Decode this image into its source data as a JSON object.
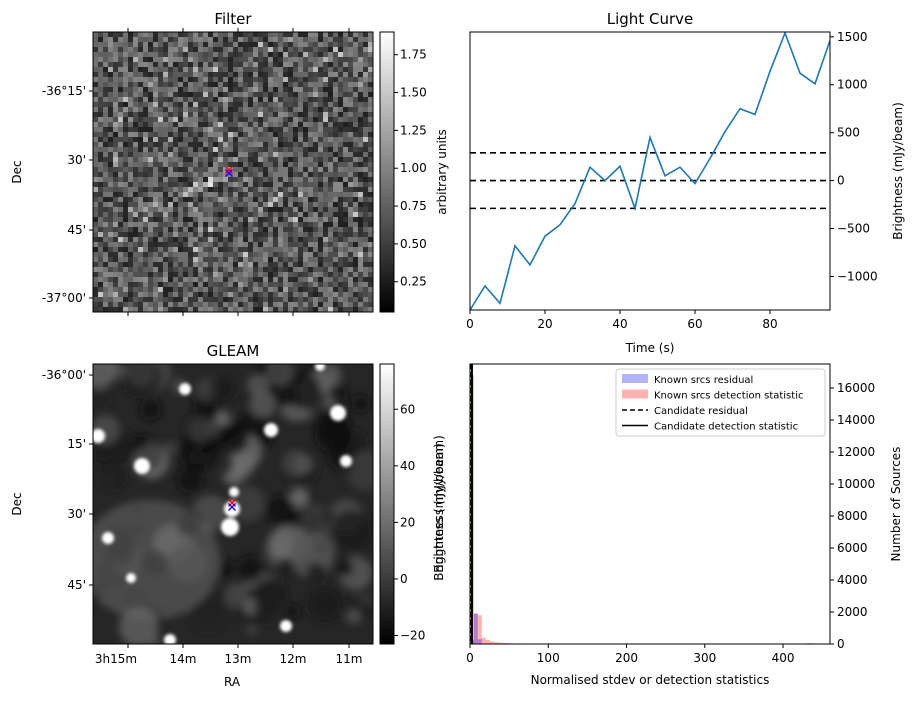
{
  "chart_data": [
    {
      "type": "heatmap",
      "title": "Filter",
      "ylabel": "Dec",
      "colorbar_label": "arbitrary units",
      "colorbar_ticks": [
        "0.25",
        "0.50",
        "0.75",
        "1.00",
        "1.25",
        "1.50",
        "1.75"
      ],
      "colorbar_range": [
        0.05,
        1.9
      ],
      "y_ticks": [
        "-36°15'",
        "30'",
        "45'",
        "-37°00'"
      ],
      "colormap": "gray",
      "markers": [
        {
          "symbol": "x",
          "color": "#ff0000"
        },
        {
          "symbol": "x",
          "color": "#0000ff"
        }
      ]
    },
    {
      "type": "line",
      "title": "Light Curve",
      "xlabel": "Time (s)",
      "ylabel": "Brightness (mJy/beam)",
      "xlim": [
        0,
        96
      ],
      "ylim": [
        -1350,
        1550
      ],
      "x_ticks": [
        0,
        20,
        40,
        60,
        80
      ],
      "y_ticks": [
        -1000,
        -500,
        0,
        500,
        1000,
        1500
      ],
      "y_axis_side": "right",
      "line_color": "#1f77b4",
      "x": [
        0,
        4,
        8,
        12,
        16,
        20,
        24,
        28,
        32,
        36,
        40,
        44,
        48,
        52,
        56,
        60,
        64,
        68,
        72,
        76,
        80,
        84,
        88,
        92,
        96
      ],
      "y": [
        -1350,
        -1100,
        -1280,
        -680,
        -880,
        -580,
        -460,
        -240,
        140,
        0,
        150,
        -290,
        450,
        50,
        140,
        -30,
        230,
        510,
        750,
        690,
        1140,
        1540,
        1120,
        1010,
        1460
      ],
      "hlines": [
        {
          "y": 290,
          "style": "dashed"
        },
        {
          "y": 0,
          "style": "dashed"
        },
        {
          "y": -290,
          "style": "dashed"
        }
      ]
    },
    {
      "type": "heatmap",
      "title": "GLEAM",
      "xlabel": "RA",
      "ylabel": "Dec",
      "colorbar_label": "Brightness (mJy/beam)",
      "colorbar_ticks": [
        "−20",
        "0",
        "20",
        "40",
        "60"
      ],
      "colorbar_range": [
        -23,
        76
      ],
      "x_ticks": [
        "3h15m",
        "14m",
        "13m",
        "12m",
        "11m"
      ],
      "y_ticks": [
        "-36°00'",
        "15'",
        "30'",
        "45'"
      ],
      "colormap": "gray",
      "markers": [
        {
          "symbol": "x",
          "color": "#ff0000"
        },
        {
          "symbol": "x",
          "color": "#0000ff"
        }
      ]
    },
    {
      "type": "bar",
      "xlabel": "Normalised stdev or detection statistics",
      "ylabel": "Number of Sources",
      "left_axis_label": "Brightness (mJy/beam)",
      "xlim": [
        0,
        460
      ],
      "ylim": [
        0,
        17500
      ],
      "x_ticks": [
        0,
        100,
        200,
        300,
        400
      ],
      "y_ticks": [
        0,
        2000,
        4000,
        6000,
        8000,
        10000,
        12000,
        14000,
        16000
      ],
      "y_axis_side": "right",
      "legend_position": "top-right",
      "bin_width": 5,
      "series": [
        {
          "name": "Known srcs residual",
          "color": "#0000ff",
          "bins": [
            0,
            5,
            10
          ],
          "values": [
            300,
            1900,
            300
          ]
        },
        {
          "name": "Known srcs detection statistic",
          "color": "#ff0000",
          "bins": [
            0,
            5,
            10,
            15,
            20,
            25,
            30,
            35,
            40,
            45,
            50,
            60,
            70,
            80,
            90,
            100,
            110,
            120,
            130,
            140,
            150,
            160,
            170,
            180,
            190,
            200,
            260,
            270,
            430,
            435
          ],
          "values": [
            16800,
            1900,
            1800,
            400,
            250,
            170,
            120,
            90,
            70,
            60,
            50,
            40,
            35,
            30,
            28,
            25,
            22,
            20,
            18,
            16,
            14,
            12,
            10,
            9,
            8,
            8,
            30,
            20,
            60,
            40
          ]
        },
        {
          "name": "Candidate residual",
          "style": "dashed",
          "x": 1.5
        },
        {
          "name": "Candidate detection statistic",
          "style": "solid",
          "x": 2.5
        }
      ]
    }
  ]
}
